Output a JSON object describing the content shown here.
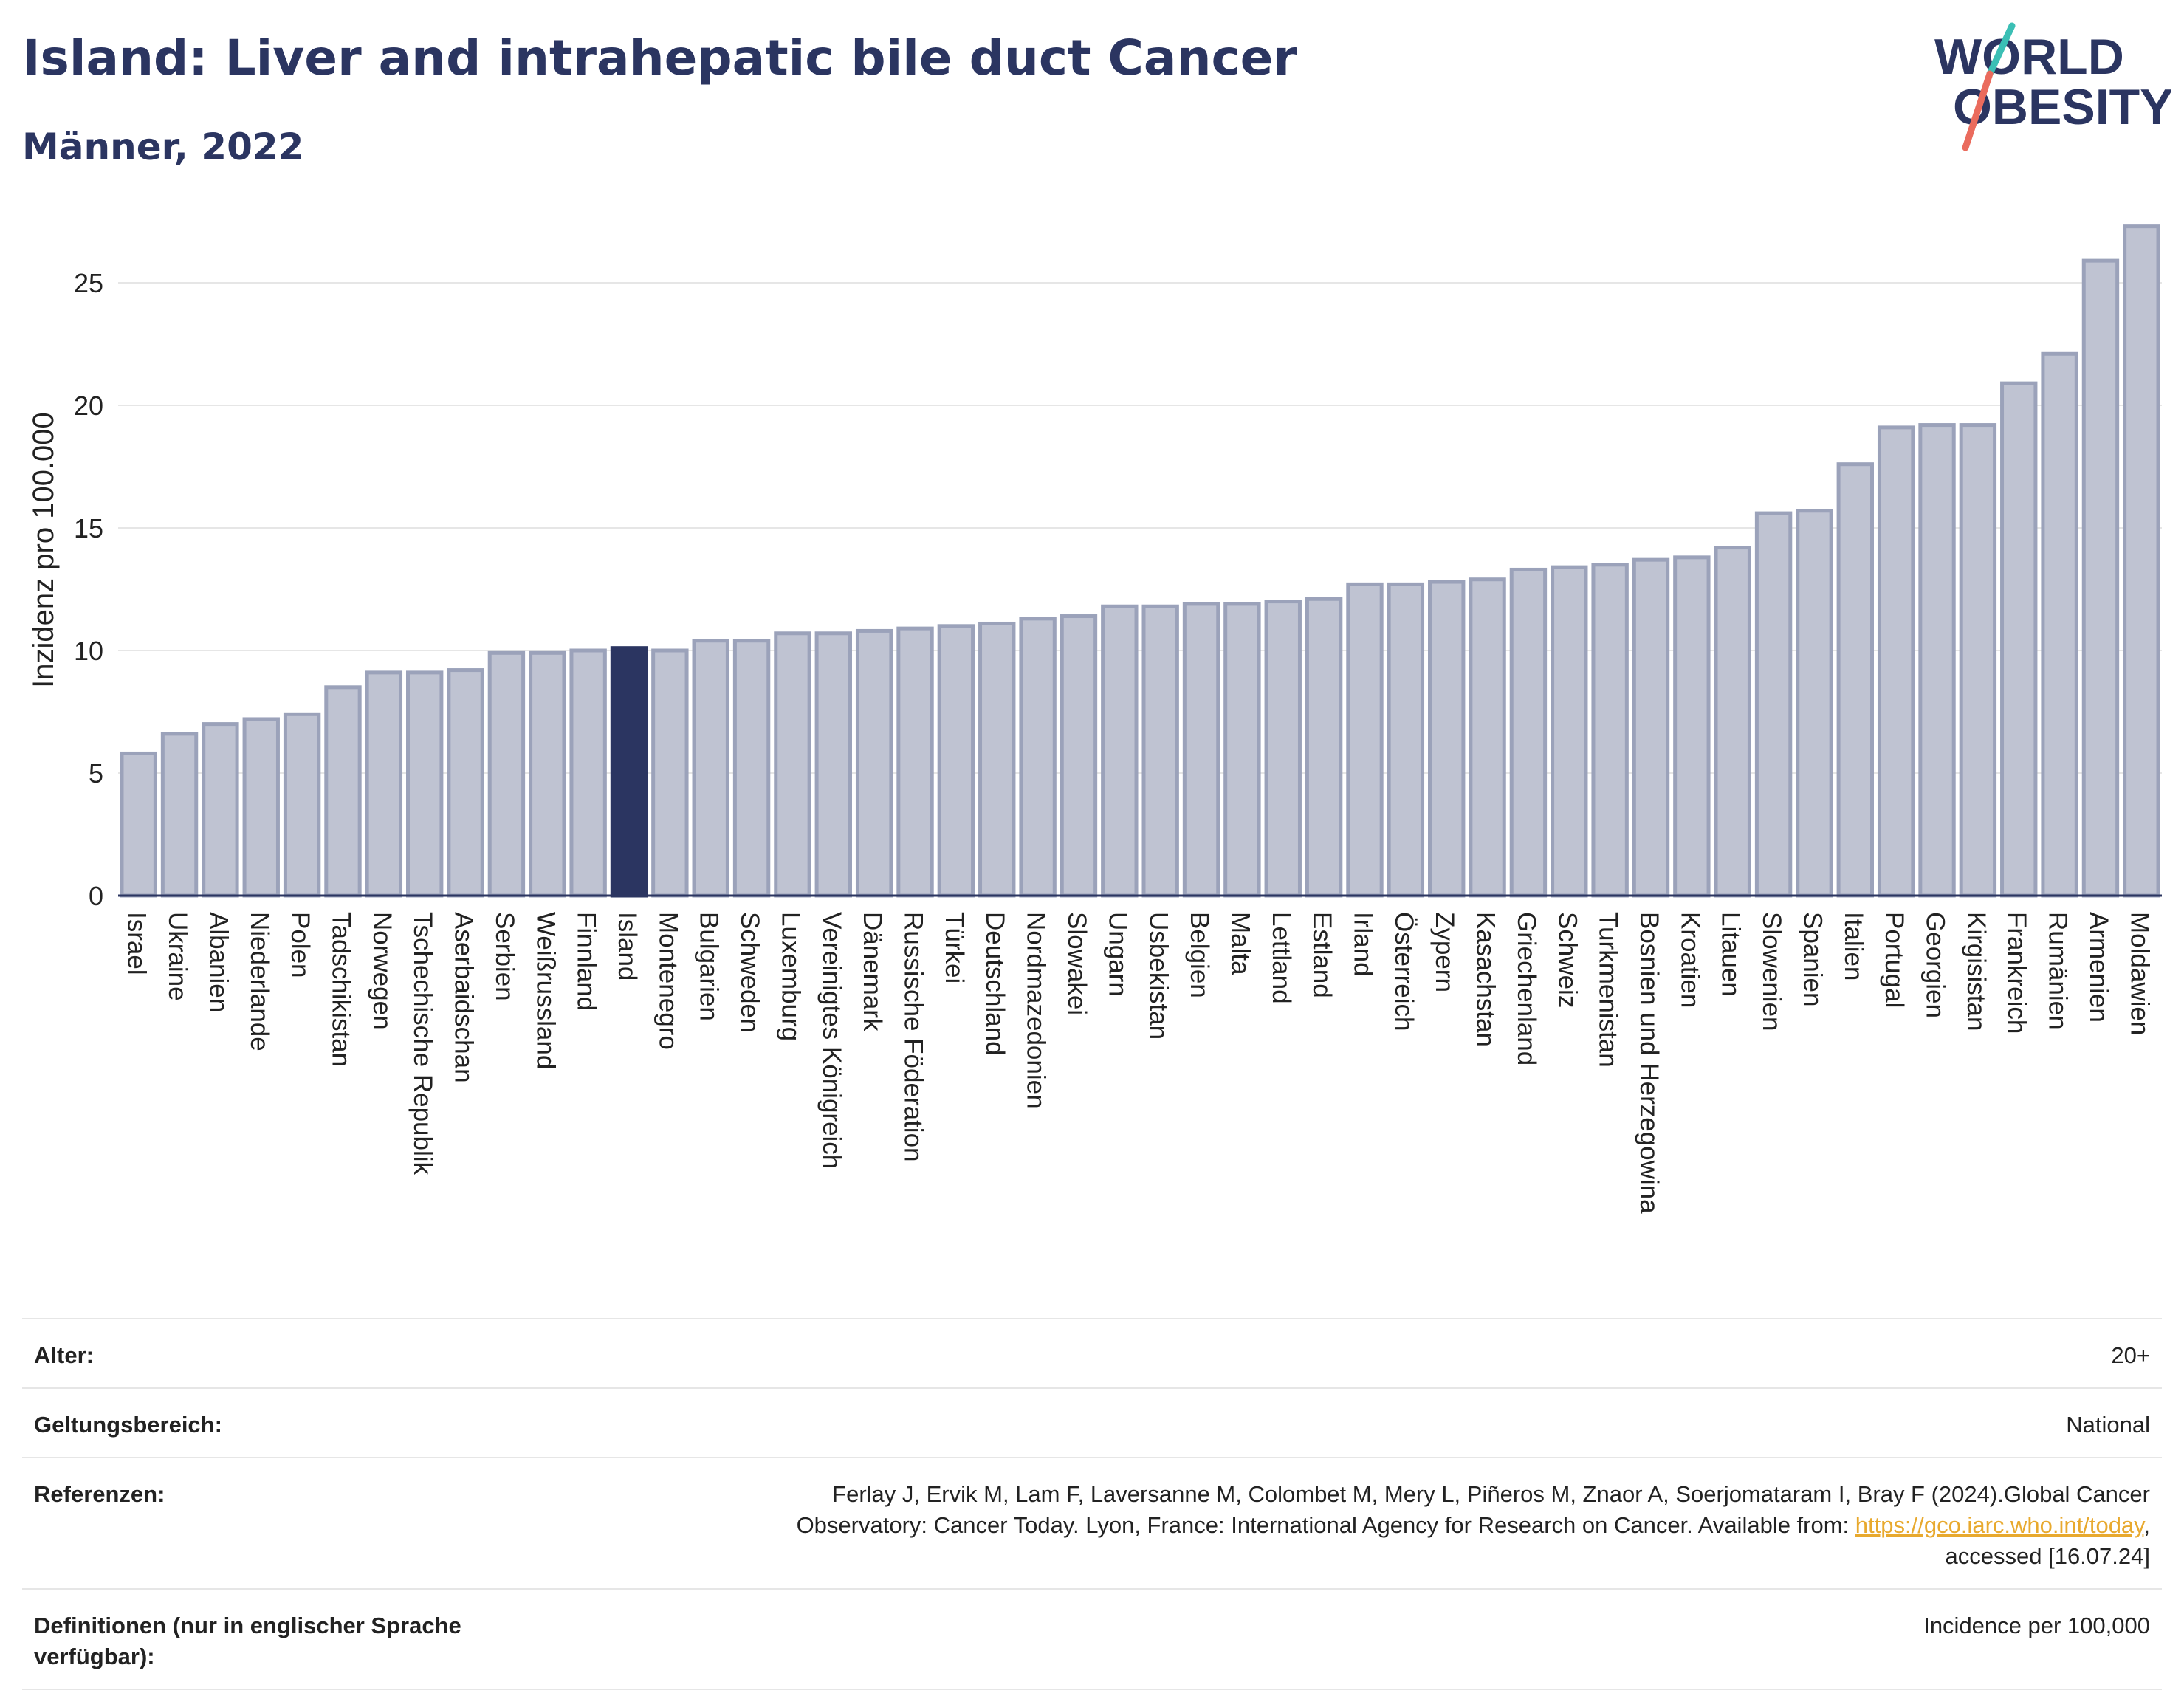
{
  "header": {
    "title": "Island: Liver and intrahepatic bile duct Cancer",
    "subtitle": "Männer, 2022"
  },
  "logo": {
    "line1": "WORLD",
    "line2": "OBESITY"
  },
  "colors": {
    "bar": "#bfc3d2",
    "bar_stroke": "#9ba2ba",
    "highlight": "#2b3561",
    "title": "#2b3561"
  },
  "chart_data": {
    "type": "bar",
    "ylabel": "Inzidenz pro 100.000",
    "xlabel": "",
    "ylim": [
      0,
      27.5
    ],
    "yticks": [
      0,
      5,
      10,
      15,
      20,
      25
    ],
    "grid": true,
    "highlight": "Island",
    "categories": [
      "Israel",
      "Ukraine",
      "Albanien",
      "Niederlande",
      "Polen",
      "Tadschikistan",
      "Norwegen",
      "Tschechische Republik",
      "Aserbaidschan",
      "Serbien",
      "Weißrussland",
      "Finnland",
      "Island",
      "Montenegro",
      "Bulgarien",
      "Schweden",
      "Luxemburg",
      "Vereinigtes Königreich",
      "Dänemark",
      "Russische Föderation",
      "Türkei",
      "Deutschland",
      "Nordmazedonien",
      "Slowakei",
      "Ungarn",
      "Usbekistan",
      "Belgien",
      "Malta",
      "Lettland",
      "Estland",
      "Irland",
      "Österreich",
      "Zypern",
      "Kasachstan",
      "Griechenland",
      "Schweiz",
      "Turkmenistan",
      "Bosnien und Herzegowina",
      "Kroatien",
      "Litauen",
      "Slowenien",
      "Spanien",
      "Italien",
      "Portugal",
      "Georgien",
      "Kirgisistan",
      "Frankreich",
      "Rumänien",
      "Armenien",
      "Moldawien"
    ],
    "values": [
      5.8,
      6.6,
      7.0,
      7.2,
      7.4,
      8.5,
      9.1,
      9.1,
      9.2,
      9.9,
      9.9,
      10.0,
      10.1,
      10.0,
      10.4,
      10.4,
      10.7,
      10.7,
      10.8,
      10.9,
      11.0,
      11.1,
      11.3,
      11.4,
      11.8,
      11.8,
      11.9,
      11.9,
      12.0,
      12.1,
      12.7,
      12.7,
      12.8,
      12.9,
      13.3,
      13.4,
      13.5,
      13.7,
      13.8,
      14.2,
      15.6,
      15.7,
      17.6,
      19.1,
      19.2,
      19.2,
      20.9,
      22.1,
      25.9,
      27.3
    ]
  },
  "meta": {
    "age": {
      "key": "Alter:",
      "value": "20+"
    },
    "scope": {
      "key": "Geltungsbereich:",
      "value": "National"
    },
    "refs": {
      "key": "Referenzen:",
      "line1": "Ferlay J, Ervik M, Lam F, Laversanne M, Colombet M, Mery L, Piñeros M, Znaor A, Soerjomataram I, Bray F (2024).Global Cancer",
      "line2": "Observatory: Cancer Today. Lyon, France: International Agency for Research on Cancer. Available from: ",
      "link": "https://gco.iarc.who.int/today",
      "line2_end": ",",
      "line3": "accessed [16.07.24]"
    },
    "defs": {
      "key": "Definitionen (nur in englischer Sprache verfügbar):",
      "value": "Incidence per 100,000"
    }
  }
}
